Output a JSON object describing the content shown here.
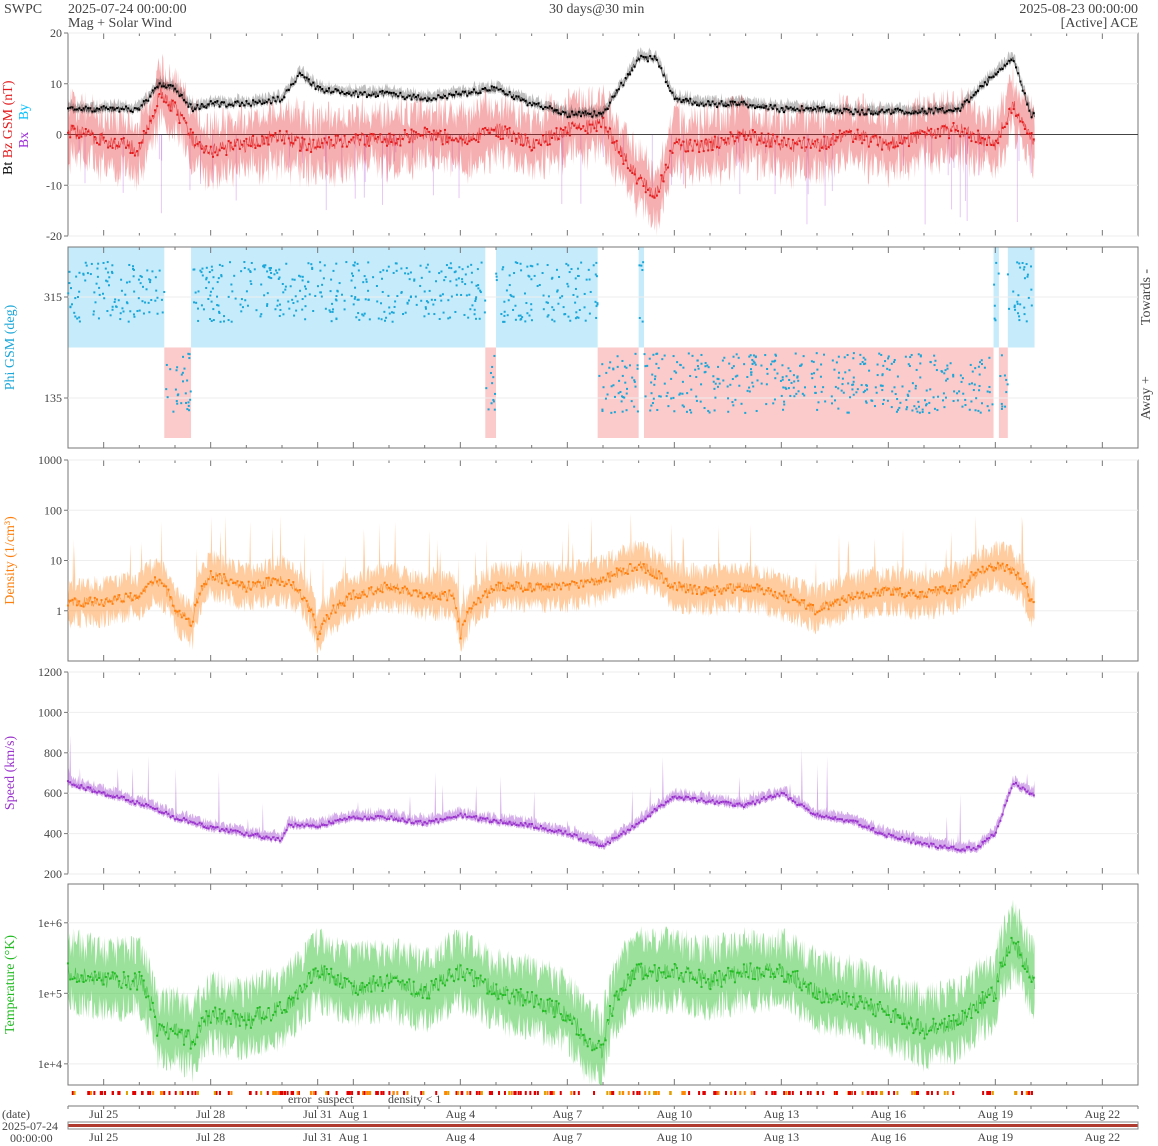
{
  "header": {
    "source": "SWPC",
    "start_time": "2025-07-24 00:00:00",
    "product": "Mag + Solar Wind",
    "span": "30 days@30 min",
    "end_time": "2025-08-23 00:00:00",
    "satellite": "[Active] ACE"
  },
  "colors": {
    "bt": "#000000",
    "bz": "#e41a1c",
    "by": "#00bfff",
    "bx": "#9a28d8",
    "phi": "#1aa6d8",
    "phi_towards_band": "#c6ebfb",
    "phi_away_band": "#fbcaca",
    "density": "#ff7f0e",
    "speed": "#9932cc",
    "temperature": "#22bb22",
    "flag_error": "#e00000",
    "flag_suspect": "#e0a000",
    "flag_density": "#ff8800"
  },
  "time_axis": {
    "start": "2025-07-24",
    "days": 30,
    "tick_labels": [
      "Jul 25",
      "Jul 28",
      "Jul 31",
      "Aug 1",
      "Aug 4",
      "Aug 7",
      "Aug 10",
      "Aug 13",
      "Aug 16",
      "Aug 19",
      "Aug 22"
    ],
    "tick_day_offsets": [
      1,
      4,
      7,
      8,
      11,
      14,
      17,
      20,
      23,
      26,
      29
    ],
    "data_end_day_offset": 27.1
  },
  "chart_data": [
    {
      "type": "line",
      "panel": "mag",
      "ylabel_parts": [
        "Bt",
        "Bz GSM (nT)"
      ],
      "legend": [
        "Bx",
        "By"
      ],
      "ylim": [
        -20,
        20
      ],
      "yticks": [
        "20",
        "10",
        "0",
        "-10",
        "-20"
      ],
      "grid": true,
      "series": [
        {
          "name": "Bt",
          "x_days": [
            0,
            1,
            2,
            2.6,
            3,
            3.5,
            4,
            5,
            6,
            6.5,
            7,
            8,
            9,
            10,
            11,
            12,
            13,
            14,
            15,
            16,
            16.5,
            17,
            18,
            19,
            20,
            21,
            22,
            23,
            24,
            25,
            26,
            26.5,
            27,
            27.1
          ],
          "values": [
            5,
            5,
            5,
            10,
            9,
            5,
            6,
            6,
            7,
            12,
            9,
            8,
            8,
            7,
            8,
            9,
            6,
            4,
            4,
            15,
            15,
            7,
            6,
            6,
            5,
            5,
            4.5,
            4.5,
            4.5,
            5,
            12,
            15,
            4,
            4
          ]
        },
        {
          "name": "Bz GSM",
          "x_days": [
            0,
            1,
            2,
            2.6,
            3,
            3.5,
            4,
            5,
            6,
            6.5,
            7,
            8,
            9,
            10,
            11,
            12,
            13,
            14,
            15,
            16,
            16.5,
            17,
            18,
            19,
            20,
            21,
            22,
            23,
            24,
            25,
            26,
            26.5,
            27,
            27.1
          ],
          "values": [
            1,
            -1,
            -3,
            8,
            5,
            -1,
            -3,
            -2,
            0,
            -2,
            -2,
            -1,
            -1,
            0,
            -1,
            1,
            -2,
            1,
            2,
            -9,
            -12,
            -2,
            -2,
            0,
            -2,
            -2,
            0,
            -2,
            0,
            1,
            -2,
            6,
            -1,
            -1
          ]
        }
      ]
    },
    {
      "type": "scatter",
      "panel": "phi",
      "ylabel": "Phi GSM (deg)",
      "yticks": [
        "315",
        "135"
      ],
      "side_labels": [
        "Towards -",
        "Away +"
      ],
      "sectors": [
        {
          "sector": "towards",
          "start_day": 0,
          "end_day": 2.7
        },
        {
          "sector": "away",
          "start_day": 2.7,
          "end_day": 3.45
        },
        {
          "sector": "towards",
          "start_day": 3.45,
          "end_day": 11.7
        },
        {
          "sector": "away",
          "start_day": 11.7,
          "end_day": 12.0
        },
        {
          "sector": "towards",
          "start_day": 12.0,
          "end_day": 14.85
        },
        {
          "sector": "away",
          "start_day": 14.85,
          "end_day": 16.0
        },
        {
          "sector": "towards",
          "start_day": 16.0,
          "end_day": 16.15
        },
        {
          "sector": "away",
          "start_day": 16.15,
          "end_day": 25.95
        },
        {
          "sector": "towards",
          "start_day": 25.95,
          "end_day": 26.1
        },
        {
          "sector": "away",
          "start_day": 26.1,
          "end_day": 26.35
        },
        {
          "sector": "towards",
          "start_day": 26.35,
          "end_day": 27.1
        }
      ]
    },
    {
      "type": "line",
      "panel": "density",
      "ylabel": "Density (1/cm³)",
      "scale": "log",
      "ylim": [
        0.1,
        1000
      ],
      "yticks": [
        "1000",
        "100",
        "10",
        "1"
      ],
      "series": [
        {
          "name": "Density",
          "x_days": [
            0,
            1,
            2,
            2.5,
            3,
            3.5,
            4,
            5,
            6,
            6.3,
            7,
            8,
            9,
            10,
            10.8,
            11,
            12,
            13,
            14,
            15,
            16,
            17,
            18,
            19,
            20,
            21,
            22,
            23,
            24,
            25,
            26,
            26.5,
            27,
            27.1
          ],
          "values": [
            1.5,
            1.5,
            2,
            4,
            1,
            0.5,
            5,
            3,
            4,
            3,
            0.3,
            2,
            3,
            2,
            2,
            0.3,
            3,
            3,
            3,
            4,
            8,
            3,
            2.5,
            3,
            2,
            1,
            2,
            2.5,
            2,
            3,
            8,
            6,
            1.5,
            1.5
          ]
        }
      ]
    },
    {
      "type": "line",
      "panel": "speed",
      "ylabel": "Speed (km/s)",
      "ylim": [
        200,
        1200
      ],
      "yticks": [
        "1200",
        "1000",
        "800",
        "600",
        "400",
        "200"
      ],
      "series": [
        {
          "name": "Speed",
          "x_days": [
            0,
            1,
            2,
            3,
            4,
            5,
            6,
            6.2,
            7,
            8,
            9,
            10,
            11,
            12,
            13,
            14,
            15,
            16,
            16.5,
            17,
            18,
            19,
            20,
            21,
            22,
            23,
            24,
            25,
            25.5,
            26,
            26.5,
            27,
            27.1
          ],
          "values": [
            650,
            600,
            550,
            480,
            430,
            400,
            370,
            440,
            440,
            480,
            480,
            450,
            490,
            460,
            440,
            400,
            340,
            450,
            520,
            580,
            560,
            540,
            600,
            490,
            460,
            390,
            350,
            320,
            330,
            400,
            650,
            600,
            590
          ]
        }
      ]
    },
    {
      "type": "line",
      "panel": "temperature",
      "ylabel": "Temperature (°K)",
      "scale": "log",
      "yticks": [
        "1e+6",
        "1e+5",
        "1e+4"
      ],
      "series": [
        {
          "name": "Temperature",
          "x_days": [
            0,
            1,
            2,
            2.5,
            3,
            3.5,
            4,
            5,
            6,
            6.5,
            7,
            8,
            9,
            10,
            11,
            12,
            13,
            14,
            14.5,
            15,
            16,
            17,
            18,
            19,
            20,
            21,
            22,
            23,
            24,
            25,
            26,
            26.5,
            27,
            27.1
          ],
          "values": [
            200000.0,
            150000.0,
            150000.0,
            30000.0,
            30000.0,
            20000.0,
            50000.0,
            40000.0,
            60000.0,
            100000.0,
            200000.0,
            120000.0,
            150000.0,
            100000.0,
            200000.0,
            100000.0,
            80000.0,
            50000.0,
            20000.0,
            15000.0,
            200000.0,
            200000.0,
            150000.0,
            200000.0,
            200000.0,
            100000.0,
            80000.0,
            50000.0,
            30000.0,
            40000.0,
            100000.0,
            500000.0,
            150000.0,
            150000.0
          ]
        }
      ]
    },
    {
      "type": "table",
      "panel": "flags",
      "legend": [
        "error",
        "suspect",
        "density < 1"
      ]
    }
  ],
  "footer": {
    "date_label": "(date)",
    "date_start": "2025-07-24",
    "time_start": "00:00:00"
  }
}
